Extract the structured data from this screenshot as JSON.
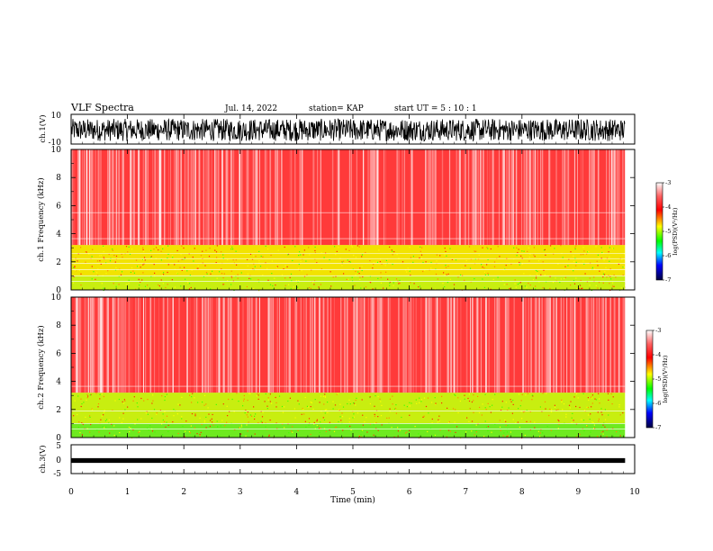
{
  "header": {
    "title": "VLF Spectra",
    "date": "Jul. 14, 2022",
    "station": "station= KAP",
    "start": "start UT =  5 : 10 : 1"
  },
  "chart_data": [
    {
      "type": "line",
      "panel": "ch1-waveform",
      "ylabel": "ch.1(V)",
      "ylim": [
        -10,
        10
      ],
      "y_ticks": [
        "10",
        "-10"
      ],
      "xlim": [
        0,
        10
      ],
      "signal_extent_min": 9.83,
      "typical_amplitude_range": [
        -8,
        7
      ]
    },
    {
      "type": "heatmap",
      "panel": "ch1-spectrogram",
      "ylabel": "ch.1  Frequency (kHz)",
      "ylim": [
        0,
        10
      ],
      "y_ticks": [
        "0",
        "2",
        "4",
        "6",
        "8",
        "10"
      ],
      "xlim": [
        0,
        10
      ],
      "signal_extent_min": 9.83,
      "bands": [
        {
          "from_khz": 0,
          "to_khz": 1.0,
          "level": "green-yellow"
        },
        {
          "from_khz": 1.0,
          "to_khz": 3.2,
          "level": "yellow-green"
        },
        {
          "from_khz": 3.2,
          "to_khz": 10,
          "level": "red"
        }
      ],
      "horizontal_lines_khz": [
        0.6,
        1.0,
        1.45,
        1.9,
        2.2,
        2.6,
        3.65,
        5.5
      ],
      "colorbar": {
        "label": "log(PSD)(V²/Hz)",
        "range": [
          -7,
          -3
        ],
        "ticks": [
          "-3",
          "-4",
          "-5",
          "-6",
          "-7"
        ],
        "colors": [
          "#ffffff",
          "#ff0000",
          "#ffff00",
          "#00ff00",
          "#00ffff",
          "#0000ff",
          "#000000"
        ]
      }
    },
    {
      "type": "heatmap",
      "panel": "ch2-spectrogram",
      "ylabel": "ch.2  Frequency (kHz)",
      "ylim": [
        0,
        10
      ],
      "y_ticks": [
        "0",
        "2",
        "4",
        "6",
        "8",
        "10"
      ],
      "xlim": [
        0,
        10
      ],
      "signal_extent_min": 9.83,
      "bands": [
        {
          "from_khz": 0,
          "to_khz": 1.0,
          "level": "green"
        },
        {
          "from_khz": 1.0,
          "to_khz": 3.2,
          "level": "green-yellow"
        },
        {
          "from_khz": 3.2,
          "to_khz": 10,
          "level": "red"
        }
      ],
      "horizontal_lines_khz": [
        0.6,
        1.0,
        1.9,
        3.65
      ],
      "colorbar": {
        "label": "log(PSD)(V²/Hz)",
        "range": [
          -7,
          -3
        ],
        "ticks": [
          "-3",
          "-4",
          "-5",
          "-6",
          "-7"
        ],
        "colors": [
          "#ffffff",
          "#ff0000",
          "#ffff00",
          "#00ff00",
          "#00ffff",
          "#0000ff",
          "#000000"
        ]
      }
    },
    {
      "type": "line",
      "panel": "ch3-waveform",
      "ylabel": "ch.3(V)",
      "ylim": [
        -5,
        5
      ],
      "y_ticks": [
        "5",
        "0",
        "-5"
      ],
      "xlim": [
        0,
        10
      ],
      "signal_extent_min": 9.83,
      "level_v": 0,
      "amplitude_v": 0.35
    }
  ],
  "x_axis": {
    "label": "Time (min)",
    "ticks": [
      "0",
      "1",
      "2",
      "3",
      "4",
      "5",
      "6",
      "7",
      "8",
      "9",
      "10"
    ],
    "range": [
      0,
      10
    ]
  }
}
